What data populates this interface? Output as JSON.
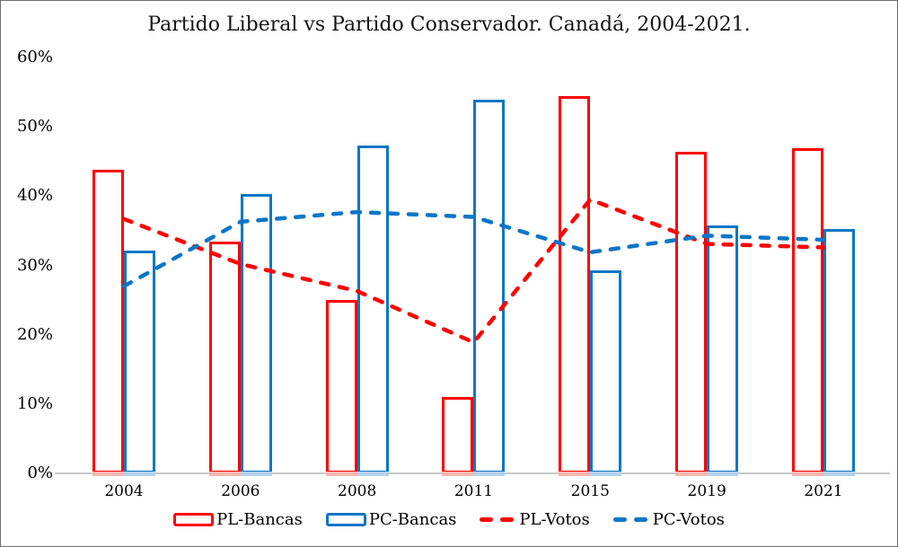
{
  "title": "Partido Liberal vs Partido Conservador. Canadá, 2004-2021.",
  "colors": {
    "pl": "#ff0000",
    "pc": "#0b76c7",
    "pl_light": "#f6b6b0",
    "pc_light": "#b3d2ec",
    "axis": "#c9c9c9",
    "text": "#000000"
  },
  "chart_data": {
    "type": "bar",
    "subtype": "clustered-outlined-bars-with-dashed-lines",
    "title": "Partido Liberal vs Partido Conservador. Canadá, 2004-2021.",
    "categories": [
      "2004",
      "2006",
      "2008",
      "2011",
      "2015",
      "2019",
      "2021"
    ],
    "series": [
      {
        "name": "PL-Bancas",
        "type": "bar",
        "color": "#ff0000",
        "values": [
          43.8,
          33.4,
          25.0,
          11.0,
          54.4,
          46.4,
          46.9
        ]
      },
      {
        "name": "PC-Bancas",
        "type": "bar",
        "color": "#0b76c7",
        "values": [
          32.1,
          40.3,
          47.3,
          53.9,
          29.3,
          35.8,
          35.2
        ]
      },
      {
        "name": "PL-Votos",
        "type": "line",
        "color": "#ff0000",
        "values": [
          36.7,
          30.2,
          26.3,
          18.9,
          39.5,
          33.1,
          32.6
        ]
      },
      {
        "name": "PC-Votos",
        "type": "line",
        "color": "#0b76c7",
        "values": [
          27.0,
          36.3,
          37.7,
          37.0,
          31.9,
          34.3,
          33.7
        ]
      }
    ],
    "xlabel": "",
    "ylabel": "",
    "ylim": [
      0,
      60
    ],
    "yticks": [
      "0%",
      "10%",
      "20%",
      "30%",
      "40%",
      "50%",
      "60%"
    ],
    "ytick_values": [
      0,
      10,
      20,
      30,
      40,
      50,
      60
    ],
    "grid": false,
    "legend_position": "bottom"
  }
}
